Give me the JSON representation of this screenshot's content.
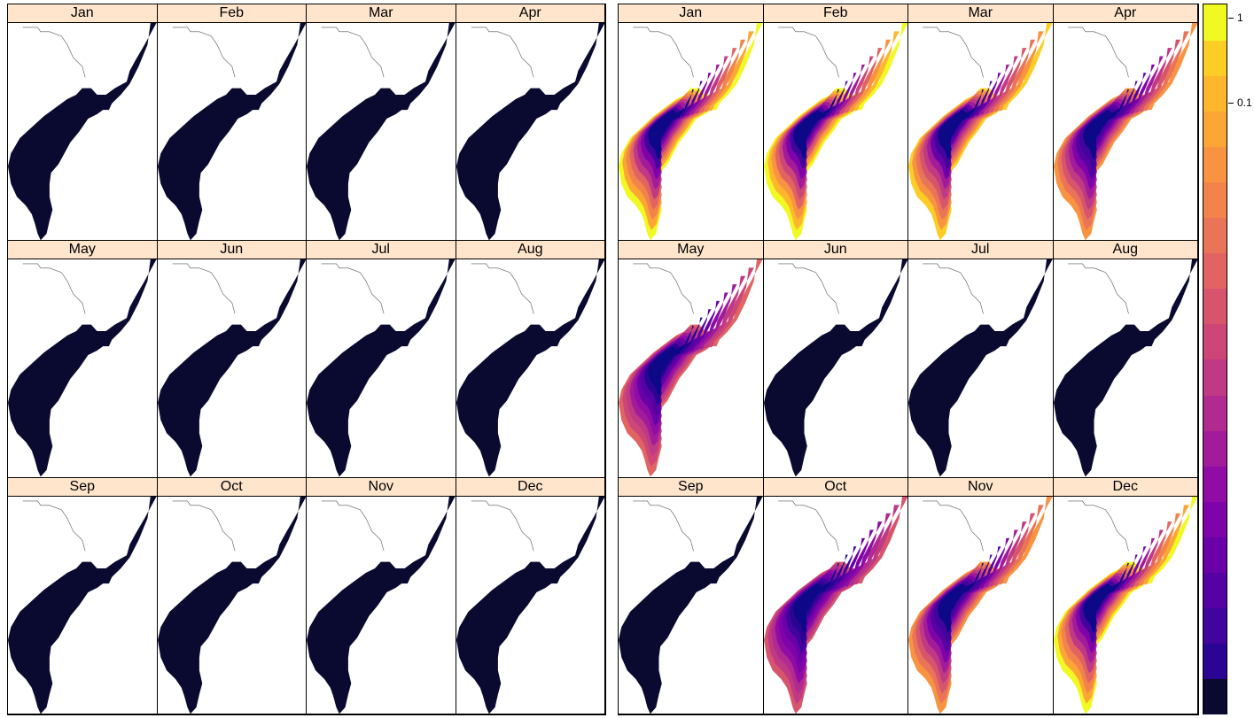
{
  "palette": [
    "#0d0887",
    "#2a0593",
    "#41049d",
    "#5601a4",
    "#6a00a8",
    "#7e03a8",
    "#8f0da4",
    "#a11b9b",
    "#b12a90",
    "#bf3984",
    "#cc4778",
    "#d6556d",
    "#e16462",
    "#ea7457",
    "#f2844b",
    "#f89441",
    "#fca636",
    "#feb72d",
    "#fcce25",
    "#f0f921"
  ],
  "no_data_color": "#0a0a30",
  "months": [
    "Jan",
    "Feb",
    "Mar",
    "Apr",
    "May",
    "Jun",
    "Jul",
    "Aug",
    "Sep",
    "Oct",
    "Nov",
    "Dec"
  ],
  "left_grid": {
    "panels": [
      {
        "label": "Jan"
      },
      {
        "label": "Feb"
      },
      {
        "label": "Mar"
      },
      {
        "label": "Apr"
      },
      {
        "label": "May"
      },
      {
        "label": "Jun"
      },
      {
        "label": "Jul"
      },
      {
        "label": "Aug"
      },
      {
        "label": "Sep"
      },
      {
        "label": "Oct"
      },
      {
        "label": "Nov"
      },
      {
        "label": "Dec"
      }
    ]
  },
  "right_grid": {
    "panels": [
      {
        "label": "Jan",
        "fill": "gradient",
        "outer_level": 0.95
      },
      {
        "label": "Feb",
        "fill": "gradient",
        "outer_level": 1.0
      },
      {
        "label": "Mar",
        "fill": "gradient",
        "outer_level": 0.9
      },
      {
        "label": "Apr",
        "fill": "gradient",
        "outer_level": 0.75
      },
      {
        "label": "May",
        "fill": "gradient",
        "outer_level": 0.6
      },
      {
        "label": "Jun",
        "fill": "dark"
      },
      {
        "label": "Jul",
        "fill": "dark"
      },
      {
        "label": "Aug",
        "fill": "dark"
      },
      {
        "label": "Sep",
        "fill": "dark"
      },
      {
        "label": "Oct",
        "fill": "gradient",
        "outer_level": 0.55
      },
      {
        "label": "Nov",
        "fill": "gradient",
        "outer_level": 0.75
      },
      {
        "label": "Dec",
        "fill": "gradient",
        "outer_level": 0.95
      }
    ]
  },
  "colorkey": {
    "tick_labels": [
      "1",
      "0.1"
    ],
    "tick_levels": [
      0.98,
      0.86
    ]
  }
}
